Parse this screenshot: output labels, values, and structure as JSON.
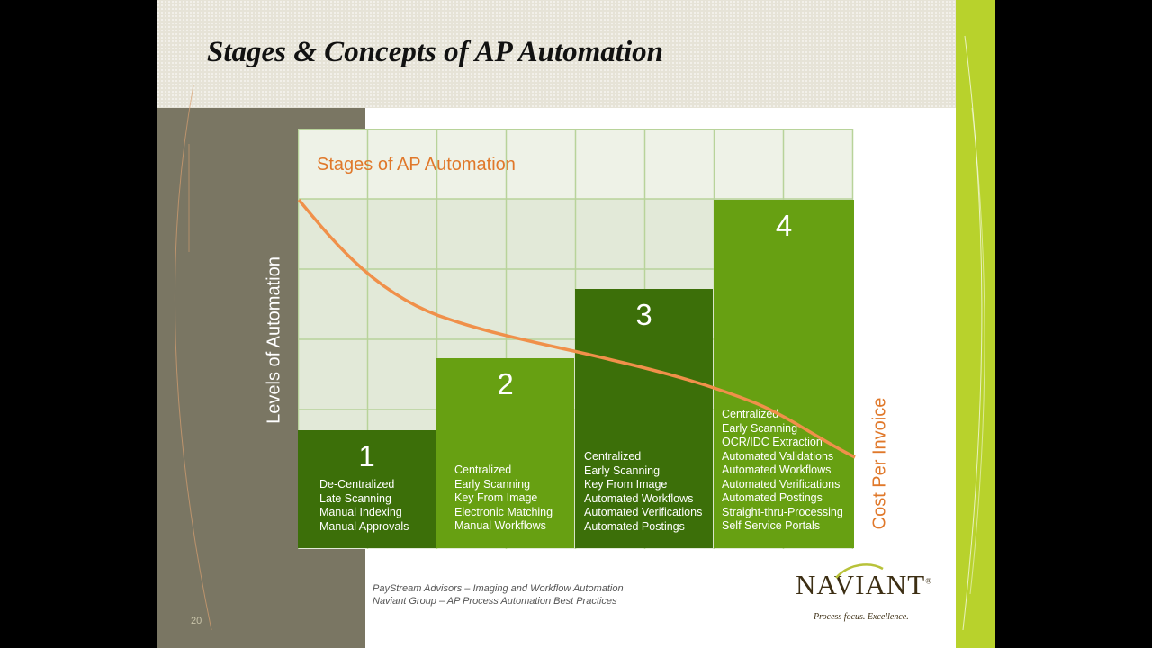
{
  "slide": {
    "title": "Stages & Concepts of AP Automation",
    "page_number": "20"
  },
  "diagram": {
    "heading": "Stages of AP Automation",
    "y_axis_label": "Levels of Automation",
    "curve_label": "Cost Per Invoice",
    "colors": {
      "dark_green": "#3c6f09",
      "light_green": "#67a012",
      "curve": "#f0904a",
      "grid_cell": "#e7eddf",
      "grid_line": "#b8d39a",
      "orange_text": "#e0782a"
    },
    "stages": [
      {
        "number": "1",
        "items": [
          "De-Centralized",
          "Late Scanning",
          "Manual  Indexing",
          "Manual  Approvals"
        ]
      },
      {
        "number": "2",
        "items": [
          "Centralized",
          "Early  Scanning",
          "Key From Image",
          "Electronic Matching",
          "Manual  Workflows"
        ]
      },
      {
        "number": "3",
        "items": [
          "Centralized",
          "Early Scanning",
          "Key From Image",
          "Automated Workflows",
          "Automated Verifications",
          "Automated Postings"
        ]
      },
      {
        "number": "4",
        "items": [
          "Centralized",
          "Early  Scanning",
          "OCR/IDC Extraction",
          "Automated Validations",
          "Automated Workflows",
          "Automated Verifications",
          "Automated Postings",
          "Straight-thru-Processing",
          "Self Service Portals"
        ]
      }
    ]
  },
  "references": [
    "PayStream Advisors – Imaging and Workflow Automation",
    "Naviant Group – AP Process Automation Best Practices"
  ],
  "logo": {
    "name": "NAVIANT",
    "mark": "®",
    "tagline": "Process focus. Excellence."
  }
}
